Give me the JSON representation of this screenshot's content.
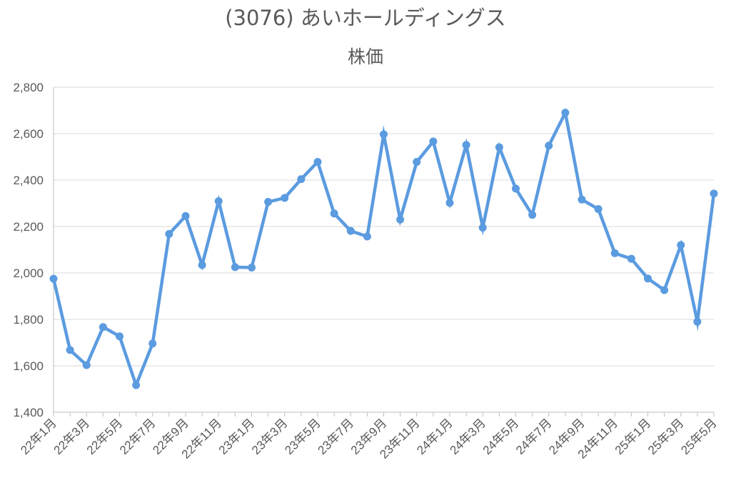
{
  "chart_data": {
    "type": "line",
    "title": "(3076) あいホールディングス",
    "subtitle": "株価",
    "xlabel": "",
    "ylabel": "",
    "ylim": [
      1400,
      2800
    ],
    "yticks": [
      "1,400",
      "1,600",
      "1,800",
      "2,000",
      "2,200",
      "2,400",
      "2,600",
      "2,800"
    ],
    "ytick_values": [
      1400,
      1600,
      1800,
      2000,
      2200,
      2400,
      2600,
      2800
    ],
    "grid": true,
    "line_color": "#5B9BE0",
    "categories": [
      "22年1月",
      "22年2月",
      "22年3月",
      "22年4月",
      "22年5月",
      "22年6月",
      "22年7月",
      "22年8月",
      "22年9月",
      "22年10月",
      "22年11月",
      "22年12月",
      "23年1月",
      "23年2月",
      "23年3月",
      "23年4月",
      "23年5月",
      "23年6月",
      "23年7月",
      "23年8月",
      "23年9月",
      "23年10月",
      "23年11月",
      "23年12月",
      "24年1月",
      "24年2月",
      "24年3月",
      "24年4月",
      "24年5月",
      "24年6月",
      "24年7月",
      "24年8月",
      "24年9月",
      "24年10月",
      "24年11月",
      "24年12月",
      "25年1月",
      "25年2月",
      "25年3月",
      "25年4月",
      "25年5月"
    ],
    "xtick_labels": [
      "22年1月",
      "22年3月",
      "22年5月",
      "22年7月",
      "22年9月",
      "22年11月",
      "23年1月",
      "23年3月",
      "23年5月",
      "23年7月",
      "23年9月",
      "23年11月",
      "24年1月",
      "24年3月",
      "24年5月",
      "24年7月",
      "24年9月",
      "24年11月",
      "25年1月",
      "25年3月",
      "25年5月"
    ],
    "series": [
      {
        "values": [
          1975,
          1668,
          1603,
          1767,
          1727,
          1517,
          1696,
          2168,
          2245,
          2034,
          2309,
          2025,
          2023,
          2306,
          2323,
          2404,
          2478,
          2256,
          2181,
          2157,
          2597,
          2230,
          2478,
          2566,
          2302,
          2551,
          2195,
          2541,
          2363,
          2250,
          2548,
          2690,
          2316,
          2275,
          2085,
          2061,
          1976,
          1926,
          2120,
          1790,
          2342
        ]
      }
    ]
  }
}
